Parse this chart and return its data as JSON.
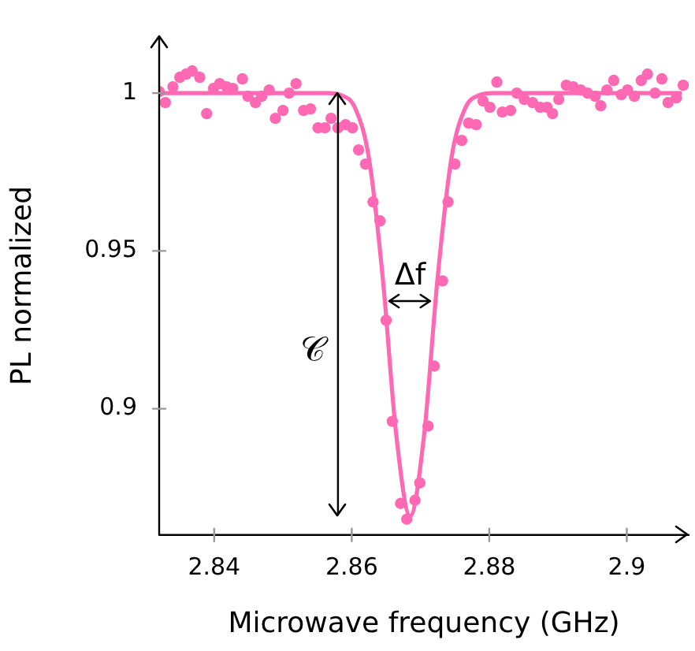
{
  "chart_data": {
    "type": "scatter",
    "xlabel": "Microwave frequency (GHz)",
    "ylabel": "PL normalized",
    "xlim": [
      2.832,
      2.909
    ],
    "ylim": [
      0.86,
      1.018
    ],
    "xticks": [
      2.84,
      2.86,
      2.88,
      2.9
    ],
    "yticks": [
      0.9,
      0.95,
      1
    ],
    "grid": false,
    "ref_lines": [
      {
        "axis": "x",
        "value": 2.858,
        "label": "𝒞"
      }
    ],
    "annotations": [
      "Δf"
    ],
    "series": [
      {
        "type": "scatter",
        "marker": "circle",
        "color": "#ff69b4",
        "x": [
          2.832,
          2.8329,
          2.834,
          2.835,
          2.8359,
          2.8368,
          2.8379,
          2.8389,
          2.8399,
          2.8408,
          2.8418,
          2.8427,
          2.8441,
          2.8449,
          2.846,
          2.8469,
          2.848,
          2.8489,
          2.85,
          2.8509,
          2.8519,
          2.853,
          2.854,
          2.8551,
          2.8561,
          2.857,
          2.858,
          2.8591,
          2.8601,
          2.861,
          2.862,
          2.8631,
          2.8641,
          2.865,
          2.8659,
          2.8671,
          2.868,
          2.8692,
          2.8699,
          2.8711,
          2.872,
          2.8732,
          2.874,
          2.875,
          2.876,
          2.877,
          2.8781,
          2.8791,
          2.8801,
          2.8811,
          2.8819,
          2.8831,
          2.884,
          2.8851,
          2.8863,
          2.8874,
          2.8884,
          2.8892,
          2.8901,
          2.8912,
          2.8922,
          2.8933,
          2.8943,
          2.8954,
          2.8962,
          2.8971,
          2.8981,
          2.8992,
          2.9001,
          2.9011,
          2.9021,
          2.903,
          2.9041,
          2.9051,
          2.906,
          2.9072,
          2.9082
        ],
        "values": [
          1.0005,
          0.997,
          1.002,
          1.005,
          1.006,
          1.007,
          1.005,
          0.9935,
          1.0015,
          1.003,
          1.002,
          1.0015,
          1.0045,
          0.999,
          0.997,
          0.999,
          1.001,
          0.992,
          0.9945,
          1.0,
          1.003,
          0.9945,
          0.995,
          0.989,
          0.989,
          0.992,
          0.989,
          0.99,
          0.989,
          0.982,
          0.9775,
          0.9655,
          0.9595,
          0.928,
          0.896,
          0.87,
          0.865,
          0.871,
          0.8765,
          0.8945,
          0.9135,
          0.9405,
          0.9655,
          0.9775,
          0.985,
          0.9905,
          0.99,
          0.9975,
          0.9955,
          1.0035,
          0.994,
          0.9945,
          1.0,
          0.998,
          0.997,
          0.9955,
          0.9955,
          0.9935,
          0.998,
          1.0025,
          1.002,
          1.001,
          1.0,
          0.999,
          0.996,
          1.001,
          1.004,
          0.9995,
          1.001,
          0.999,
          1.004,
          1.006,
          1.0,
          1.0045,
          0.997,
          0.9985,
          1.0025
        ]
      },
      {
        "type": "line",
        "marker": "none",
        "color": "#ff69b4",
        "x": [
          2.832,
          2.8565,
          2.8585,
          2.8605,
          2.8625,
          2.8645,
          2.8665,
          2.8685,
          2.8705,
          2.8725,
          2.8745,
          2.8765,
          2.8785,
          2.8805,
          2.908
        ],
        "values": [
          1,
          1,
          0.9993,
          0.9952,
          0.9794,
          0.9417,
          0.8912,
          0.866,
          0.8912,
          0.9417,
          0.9794,
          0.9952,
          0.9993,
          1,
          1
        ]
      }
    ]
  }
}
